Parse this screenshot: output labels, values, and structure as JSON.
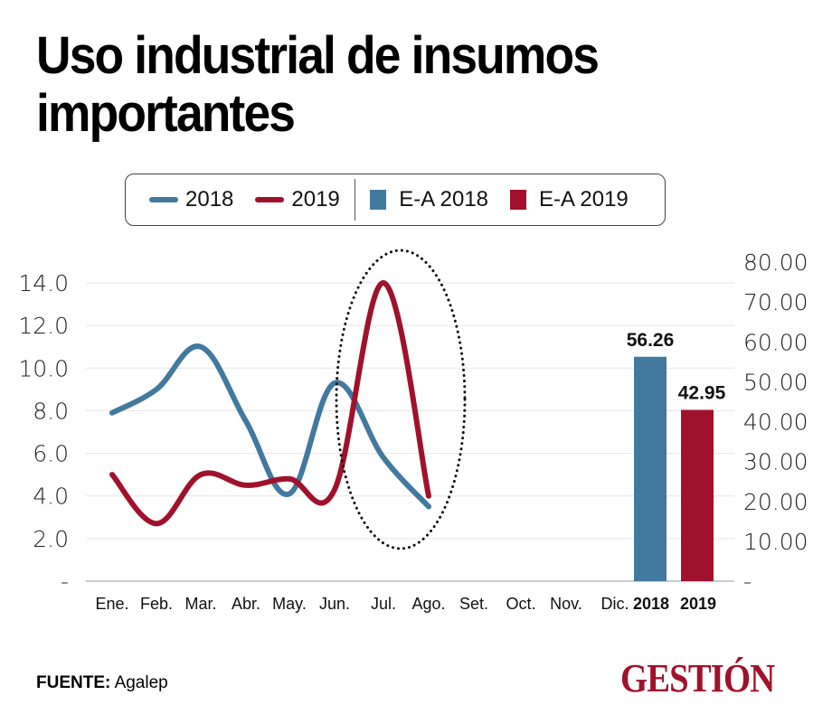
{
  "header": {
    "title": "Uso industrial de insumos importantes"
  },
  "legend": {
    "items": [
      {
        "label": "2018",
        "kind": "line",
        "color": "#42799f"
      },
      {
        "label": "2019",
        "kind": "line",
        "color": "#a0112c"
      },
      {
        "label": "E-A 2018",
        "kind": "square",
        "color": "#42799f"
      },
      {
        "label": "E-A 2019",
        "kind": "square",
        "color": "#a0112c"
      }
    ]
  },
  "chart_data": {
    "type": "line",
    "title": "Uso industrial de insumos importantes",
    "xlabel": "",
    "ylabel": "",
    "categories": [
      "Ene.",
      "Feb.",
      "Mar.",
      "Abr.",
      "May.",
      "Jun.",
      "Jul.",
      "Ago.",
      "Set.",
      "Oct.",
      "Nov.",
      "Dic.",
      "2018",
      "2019"
    ],
    "left_axis": {
      "ylim": [
        0,
        14
      ],
      "ticks": [
        "-",
        "2.0",
        "4.0",
        "6.0",
        "8.0",
        "10.0",
        "12.0",
        "14.0"
      ],
      "tick_values": [
        0,
        2,
        4,
        6,
        8,
        10,
        12,
        14
      ]
    },
    "right_axis": {
      "ylim": [
        0,
        80
      ],
      "ticks": [
        "-",
        "10.00",
        "20.00",
        "30.00",
        "40.00",
        "50.00",
        "60.00",
        "70.00",
        "80.00"
      ],
      "tick_values": [
        0,
        10,
        20,
        30,
        40,
        50,
        60,
        70,
        80
      ]
    },
    "series": [
      {
        "name": "2018",
        "type": "line",
        "axis": "left",
        "color": "#42799f",
        "values": [
          7.9,
          9.0,
          11.0,
          7.5,
          4.1,
          9.3,
          5.8,
          3.5,
          null,
          null,
          null,
          null,
          null,
          null
        ]
      },
      {
        "name": "2019",
        "type": "line",
        "axis": "left",
        "color": "#a0112c",
        "values": [
          5.0,
          2.7,
          5.0,
          4.5,
          4.8,
          4.3,
          14.0,
          4.0,
          null,
          null,
          null,
          null,
          null,
          null
        ]
      },
      {
        "name": "E-A 2018",
        "type": "bar",
        "axis": "right",
        "color": "#42799f",
        "category": "2018",
        "value": 56.26,
        "label": "56.26"
      },
      {
        "name": "E-A 2019",
        "type": "bar",
        "axis": "right",
        "color": "#a0112c",
        "category": "2019",
        "value": 42.95,
        "label": "42.95"
      }
    ],
    "annotations": [
      {
        "type": "dotted-ellipse",
        "around": [
          "Jun.",
          "Jul.",
          "Ago."
        ]
      }
    ],
    "grid": true,
    "legend_position": "top"
  },
  "footer": {
    "source_label": "FUENTE:",
    "source_value": "Agalep",
    "logo": "GESTIÓN"
  }
}
